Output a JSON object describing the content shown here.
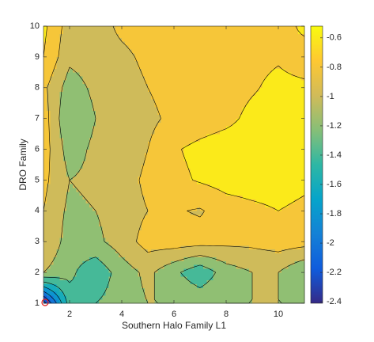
{
  "chart_data": {
    "type": "contour",
    "xlabel": "Southern Halo Family L1",
    "ylabel": "DRO Family",
    "x": [
      1,
      2,
      3,
      4,
      5,
      6,
      7,
      8,
      9,
      10,
      11
    ],
    "y": [
      1,
      2,
      3,
      4,
      5,
      6,
      7,
      8,
      9,
      10
    ],
    "z": [
      [
        -2.3,
        -1.3,
        -1.2,
        -1.1,
        -1.0,
        -1.0,
        -1.05,
        -1.0,
        -1.0,
        -1.0,
        -1.0
      ],
      [
        -1.0,
        -1.15,
        -1.35,
        -1.1,
        -0.95,
        -1.15,
        -1.35,
        -1.1,
        -1.0,
        -1.0,
        -1.2
      ],
      [
        -0.8,
        -1.1,
        -1.05,
        -0.9,
        -0.72,
        -0.7,
        -0.72,
        -0.75,
        -0.75,
        -0.7,
        -0.72
      ],
      [
        -0.8,
        -1.05,
        -1.0,
        -0.9,
        -0.8,
        -0.78,
        -0.82,
        -0.7,
        -0.65,
        -0.6,
        -0.65
      ],
      [
        -0.75,
        -1.0,
        -0.95,
        -0.9,
        -0.75,
        -0.65,
        -0.58,
        -0.52,
        -0.5,
        -0.5,
        -0.55
      ],
      [
        -0.7,
        -1.1,
        -0.95,
        -0.95,
        -0.8,
        -0.62,
        -0.55,
        -0.5,
        -0.5,
        -0.5,
        -0.52
      ],
      [
        -0.7,
        -1.2,
        -1.0,
        -0.9,
        -0.85,
        -0.75,
        -0.7,
        -0.65,
        -0.55,
        -0.52,
        -0.53
      ],
      [
        -0.75,
        -1.1,
        -0.95,
        -0.9,
        -0.8,
        -0.72,
        -0.7,
        -0.68,
        -0.62,
        -0.55,
        -0.56
      ],
      [
        -0.6,
        -0.95,
        -0.9,
        -0.85,
        -0.75,
        -0.7,
        -0.7,
        -0.7,
        -0.65,
        -0.62,
        -0.7
      ],
      [
        -0.55,
        -0.9,
        -0.9,
        -0.75,
        -0.7,
        -0.7,
        -0.7,
        -0.7,
        -0.7,
        -0.7,
        -0.55
      ]
    ],
    "levels": [
      -2.4,
      -2.2,
      -2.0,
      -1.8,
      -1.6,
      -1.4,
      -1.2,
      -1.0,
      -0.8,
      -0.6
    ],
    "xlim": [
      1,
      11
    ],
    "ylim": [
      1,
      10
    ],
    "xticks": [
      2,
      4,
      6,
      8,
      10
    ],
    "yticks": [
      1,
      2,
      3,
      4,
      5,
      6,
      7,
      8,
      9,
      10
    ],
    "clim": [
      -2.41,
      -0.52
    ],
    "cticks": [
      -2.4,
      -2.2,
      -2.0,
      -1.8,
      -1.6,
      -1.4,
      -1.2,
      -1.0,
      -0.8,
      -0.6
    ],
    "colormap": [
      "#352a87",
      "#0f5cdd",
      "#1481d6",
      "#06a4ca",
      "#2eb7a4",
      "#87bf77",
      "#d1bb59",
      "#fec832",
      "#f9fb0e"
    ]
  }
}
